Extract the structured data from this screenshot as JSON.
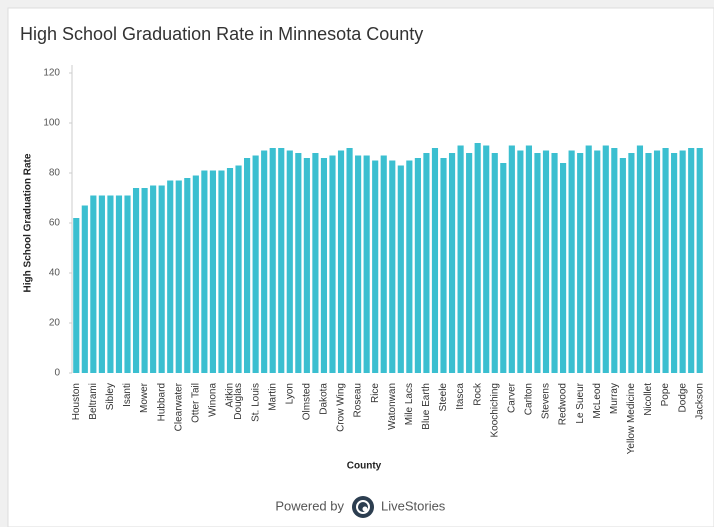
{
  "chart_data": {
    "type": "bar",
    "title": "High School Graduation Rate in Minnesota County",
    "y_label": "High School Graduation Rate",
    "x_label": "County",
    "color": "#3bbfd0",
    "ylim": [
      0,
      120
    ],
    "yticks": [
      0,
      20,
      40,
      60,
      80,
      100,
      120
    ],
    "grid": false,
    "categories": [
      "Houston",
      null,
      "Beltrami",
      null,
      "Sibley",
      null,
      "Isanti",
      null,
      "Mower",
      null,
      "Hubbard",
      null,
      "Clearwater",
      null,
      "Otter Tail",
      null,
      "Winona",
      null,
      "Aitkin",
      "Douglas",
      null,
      "St. Louis",
      null,
      "Martin",
      null,
      "Lyon",
      null,
      "Olmsted",
      null,
      "Dakota",
      null,
      "Crow Wing",
      null,
      "Roseau",
      null,
      "Rice",
      null,
      "Watonwan",
      null,
      "Mile Lacs",
      null,
      "Blue Earth",
      null,
      "Steele",
      null,
      "Itasca",
      null,
      "Rock",
      null,
      "Koochiching",
      null,
      "Carver",
      null,
      "Carlton",
      null,
      "Stevens",
      null,
      "Redwood",
      null,
      "Le Sueur",
      null,
      "McLeod",
      null,
      "Murray",
      null,
      "Yellow Medicine",
      null,
      "Nicollet",
      null,
      "Pope",
      null,
      "Dodge",
      null,
      "Jackson"
    ],
    "values": [
      62,
      67,
      71,
      71,
      71,
      71,
      71,
      74,
      74,
      75,
      75,
      77,
      77,
      78,
      79,
      81,
      81,
      81,
      82,
      83,
      86,
      87,
      89,
      90,
      90,
      89,
      88,
      86,
      88,
      86,
      87,
      89,
      90,
      87,
      87,
      85,
      87,
      85,
      83,
      85,
      86,
      88,
      90,
      86,
      88,
      91,
      88,
      92,
      91,
      88,
      84,
      91,
      89,
      91,
      88,
      89,
      88,
      84,
      89,
      88,
      91,
      89,
      91,
      90,
      86,
      88,
      91,
      88,
      89,
      90,
      88,
      89,
      90,
      90
    ]
  },
  "footer": {
    "powered_by": "Powered by",
    "brand": "LiveStories"
  }
}
